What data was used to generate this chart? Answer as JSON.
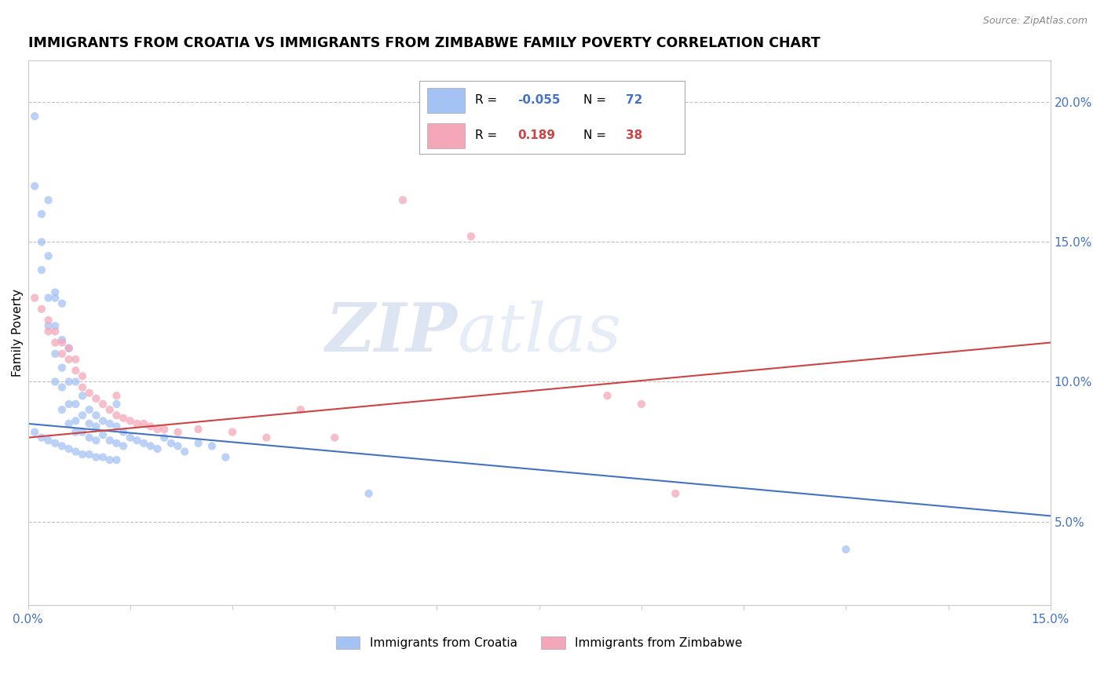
{
  "title": "IMMIGRANTS FROM CROATIA VS IMMIGRANTS FROM ZIMBABWE FAMILY POVERTY CORRELATION CHART",
  "source": "Source: ZipAtlas.com",
  "ylabel": "Family Poverty",
  "ylabel_right_ticks": [
    "20.0%",
    "15.0%",
    "10.0%",
    "5.0%"
  ],
  "ylabel_right_vals": [
    0.2,
    0.15,
    0.1,
    0.05
  ],
  "xmin": 0.0,
  "xmax": 0.15,
  "ymin": 0.02,
  "ymax": 0.215,
  "croatia_color": "#a4c2f4",
  "zimbabwe_color": "#f4a7b9",
  "croatia_line_color": "#4472c4",
  "zimbabwe_line_color": "#cc4444",
  "legend_R_croatia": "-0.055",
  "legend_N_croatia": "72",
  "legend_R_zimbabwe": "0.189",
  "legend_N_zimbabwe": "38",
  "watermark_zip": "ZIP",
  "watermark_atlas": "atlas",
  "croatia_x": [
    0.001,
    0.001,
    0.002,
    0.002,
    0.002,
    0.003,
    0.003,
    0.003,
    0.003,
    0.004,
    0.004,
    0.004,
    0.004,
    0.005,
    0.005,
    0.005,
    0.005,
    0.006,
    0.006,
    0.006,
    0.006,
    0.007,
    0.007,
    0.007,
    0.007,
    0.008,
    0.008,
    0.008,
    0.009,
    0.009,
    0.009,
    0.01,
    0.01,
    0.01,
    0.011,
    0.011,
    0.012,
    0.012,
    0.013,
    0.013,
    0.014,
    0.014,
    0.015,
    0.016,
    0.017,
    0.018,
    0.019,
    0.02,
    0.021,
    0.022,
    0.023,
    0.025,
    0.027,
    0.029,
    0.001,
    0.002,
    0.003,
    0.004,
    0.005,
    0.006,
    0.007,
    0.008,
    0.009,
    0.01,
    0.011,
    0.012,
    0.013,
    0.004,
    0.005,
    0.013,
    0.05,
    0.12
  ],
  "croatia_y": [
    0.195,
    0.17,
    0.16,
    0.15,
    0.14,
    0.165,
    0.145,
    0.13,
    0.12,
    0.13,
    0.12,
    0.11,
    0.1,
    0.115,
    0.105,
    0.098,
    0.09,
    0.112,
    0.1,
    0.092,
    0.085,
    0.1,
    0.092,
    0.086,
    0.082,
    0.095,
    0.088,
    0.082,
    0.09,
    0.085,
    0.08,
    0.088,
    0.084,
    0.079,
    0.086,
    0.081,
    0.085,
    0.079,
    0.084,
    0.078,
    0.082,
    0.077,
    0.08,
    0.079,
    0.078,
    0.077,
    0.076,
    0.08,
    0.078,
    0.077,
    0.075,
    0.078,
    0.077,
    0.073,
    0.082,
    0.08,
    0.079,
    0.078,
    0.077,
    0.076,
    0.075,
    0.074,
    0.074,
    0.073,
    0.073,
    0.072,
    0.072,
    0.132,
    0.128,
    0.092,
    0.06,
    0.04
  ],
  "zimbabwe_x": [
    0.001,
    0.002,
    0.003,
    0.003,
    0.004,
    0.004,
    0.005,
    0.005,
    0.006,
    0.006,
    0.007,
    0.007,
    0.008,
    0.008,
    0.009,
    0.01,
    0.011,
    0.012,
    0.013,
    0.014,
    0.015,
    0.016,
    0.017,
    0.018,
    0.019,
    0.02,
    0.022,
    0.025,
    0.03,
    0.035,
    0.045,
    0.055,
    0.065,
    0.09,
    0.095,
    0.013,
    0.04,
    0.085
  ],
  "zimbabwe_y": [
    0.13,
    0.126,
    0.122,
    0.118,
    0.118,
    0.114,
    0.114,
    0.11,
    0.112,
    0.108,
    0.108,
    0.104,
    0.102,
    0.098,
    0.096,
    0.094,
    0.092,
    0.09,
    0.088,
    0.087,
    0.086,
    0.085,
    0.085,
    0.084,
    0.083,
    0.083,
    0.082,
    0.083,
    0.082,
    0.08,
    0.08,
    0.165,
    0.152,
    0.092,
    0.06,
    0.095,
    0.09,
    0.095
  ]
}
